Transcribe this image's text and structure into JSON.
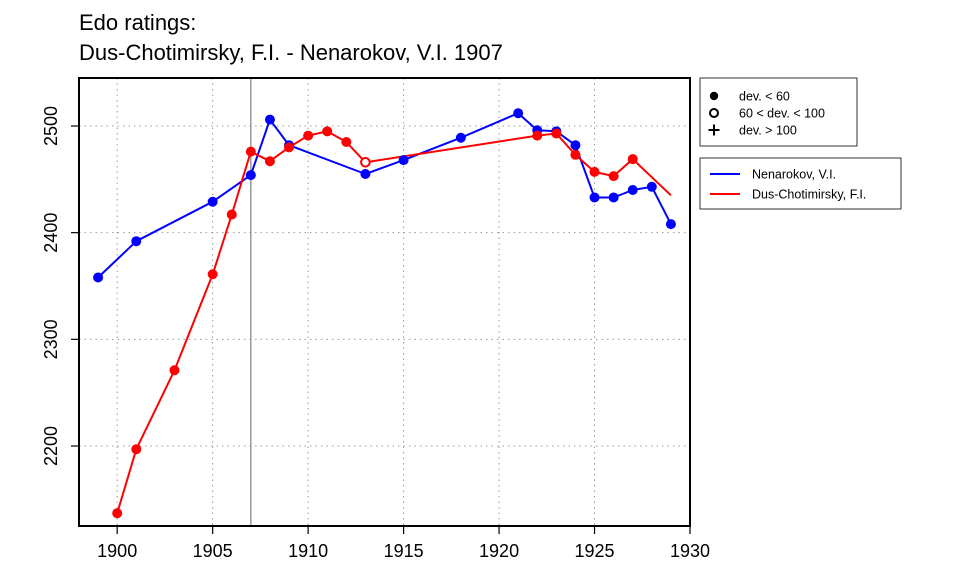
{
  "chart_data": {
    "type": "line",
    "title": "Edo ratings:",
    "subtitle": "Dus-Chotimirsky, F.I. - Nenarokov, V.I. 1907",
    "xlabel": "",
    "ylabel": "",
    "xlim": [
      1898,
      1930
    ],
    "ylim": [
      2125,
      2545
    ],
    "x_ticks": [
      1900,
      1905,
      1910,
      1915,
      1920,
      1925,
      1930
    ],
    "y_ticks": [
      2200,
      2300,
      2400,
      2500
    ],
    "x_tick_labels": [
      "1900",
      "1905",
      "1910",
      "1915",
      "1920",
      "1925",
      "1930"
    ],
    "y_tick_labels": [
      "2200",
      "2300",
      "2400",
      "2500"
    ],
    "grid": true,
    "reference_line_x": 1907,
    "marker_legend": [
      {
        "label": "dev. < 60",
        "marker": "filled-circle"
      },
      {
        "label": "60 < dev. < 100",
        "marker": "open-circle"
      },
      {
        "label": "dev. > 100",
        "marker": "plus"
      }
    ],
    "series": [
      {
        "name": "Nenarokov, V.I.",
        "color": "#0000ff",
        "points": [
          {
            "x": 1899,
            "y": 2358,
            "marker": "filled"
          },
          {
            "x": 1901,
            "y": 2392,
            "marker": "filled"
          },
          {
            "x": 1905,
            "y": 2429,
            "marker": "filled"
          },
          {
            "x": 1907,
            "y": 2454,
            "marker": "filled"
          },
          {
            "x": 1908,
            "y": 2506,
            "marker": "filled"
          },
          {
            "x": 1909,
            "y": 2482,
            "marker": "filled"
          },
          {
            "x": 1913,
            "y": 2455,
            "marker": "filled"
          },
          {
            "x": 1915,
            "y": 2468,
            "marker": "filled"
          },
          {
            "x": 1918,
            "y": 2489,
            "marker": "filled"
          },
          {
            "x": 1921,
            "y": 2512,
            "marker": "filled"
          },
          {
            "x": 1922,
            "y": 2496,
            "marker": "filled"
          },
          {
            "x": 1923,
            "y": 2495,
            "marker": "filled"
          },
          {
            "x": 1924,
            "y": 2482,
            "marker": "filled"
          },
          {
            "x": 1925,
            "y": 2433,
            "marker": "filled"
          },
          {
            "x": 1926,
            "y": 2433,
            "marker": "filled"
          },
          {
            "x": 1927,
            "y": 2440,
            "marker": "filled"
          },
          {
            "x": 1928,
            "y": 2443,
            "marker": "filled"
          },
          {
            "x": 1929,
            "y": 2408,
            "marker": "filled"
          }
        ]
      },
      {
        "name": "Dus-Chotimirsky, F.I.",
        "color": "#ff0000",
        "points": [
          {
            "x": 1900,
            "y": 2137,
            "marker": "filled"
          },
          {
            "x": 1901,
            "y": 2197,
            "marker": "filled"
          },
          {
            "x": 1903,
            "y": 2271,
            "marker": "filled"
          },
          {
            "x": 1905,
            "y": 2361,
            "marker": "filled"
          },
          {
            "x": 1906,
            "y": 2417,
            "marker": "filled"
          },
          {
            "x": 1907,
            "y": 2476,
            "marker": "filled"
          },
          {
            "x": 1908,
            "y": 2467,
            "marker": "filled"
          },
          {
            "x": 1909,
            "y": 2480,
            "marker": "filled"
          },
          {
            "x": 1910,
            "y": 2491,
            "marker": "filled"
          },
          {
            "x": 1911,
            "y": 2495,
            "marker": "filled"
          },
          {
            "x": 1912,
            "y": 2485,
            "marker": "filled"
          },
          {
            "x": 1913,
            "y": 2466,
            "marker": "open"
          },
          {
            "x": 1922,
            "y": 2491,
            "marker": "filled"
          },
          {
            "x": 1923,
            "y": 2493,
            "marker": "filled"
          },
          {
            "x": 1924,
            "y": 2473,
            "marker": "filled"
          },
          {
            "x": 1925,
            "y": 2457,
            "marker": "filled"
          },
          {
            "x": 1926,
            "y": 2453,
            "marker": "filled"
          },
          {
            "x": 1927,
            "y": 2469,
            "marker": "filled"
          },
          {
            "x": 1929,
            "y": 2435,
            "marker": "none"
          }
        ]
      }
    ]
  }
}
